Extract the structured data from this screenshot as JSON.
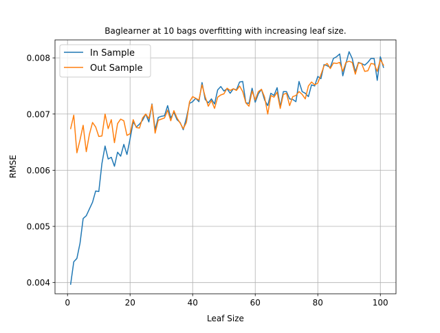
{
  "chart_data": {
    "type": "line",
    "title": "Baglearner at 10 bags overfitting with increasing leaf size.",
    "xlabel": "Leaf Size",
    "ylabel": "RMSE",
    "xlim": [
      -4,
      105
    ],
    "ylim": [
      0.0038,
      0.00832
    ],
    "grid": true,
    "legend_position": "upper-left",
    "x_ticks": [
      {
        "value": 0,
        "label": "0"
      },
      {
        "value": 20,
        "label": "20"
      },
      {
        "value": 40,
        "label": "40"
      },
      {
        "value": 60,
        "label": "60"
      },
      {
        "value": 80,
        "label": "80"
      },
      {
        "value": 100,
        "label": "100"
      }
    ],
    "y_ticks": [
      {
        "value": 0.004,
        "label": "0.004"
      },
      {
        "value": 0.005,
        "label": "0.005"
      },
      {
        "value": 0.006,
        "label": "0.006"
      },
      {
        "value": 0.007,
        "label": "0.007"
      },
      {
        "value": 0.008,
        "label": "0.008"
      }
    ],
    "x_start": 1,
    "series": [
      {
        "name": "In Sample",
        "color": "#1f77b4",
        "values": [
          0.00397,
          0.00437,
          0.00443,
          0.0047,
          0.00514,
          0.00519,
          0.00531,
          0.00543,
          0.00563,
          0.00562,
          0.00612,
          0.00643,
          0.0062,
          0.00623,
          0.00607,
          0.00632,
          0.00625,
          0.00646,
          0.00628,
          0.00656,
          0.00686,
          0.00677,
          0.00682,
          0.00689,
          0.007,
          0.00686,
          0.00718,
          0.00672,
          0.00694,
          0.00696,
          0.00697,
          0.00715,
          0.00693,
          0.00703,
          0.0069,
          0.00685,
          0.00672,
          0.00693,
          0.00719,
          0.00722,
          0.00728,
          0.00722,
          0.00756,
          0.00726,
          0.0072,
          0.00727,
          0.00718,
          0.00743,
          0.00749,
          0.00741,
          0.00745,
          0.00737,
          0.00745,
          0.00743,
          0.00757,
          0.00758,
          0.0072,
          0.00719,
          0.00746,
          0.00721,
          0.00736,
          0.00744,
          0.00725,
          0.00715,
          0.00737,
          0.00733,
          0.00747,
          0.00713,
          0.0074,
          0.0074,
          0.00727,
          0.00726,
          0.00722,
          0.00758,
          0.0074,
          0.00737,
          0.00731,
          0.00752,
          0.0075,
          0.00767,
          0.00763,
          0.00788,
          0.00786,
          0.00783,
          0.00799,
          0.00802,
          0.00807,
          0.00768,
          0.0079,
          0.00811,
          0.00799,
          0.00775,
          0.00792,
          0.0079,
          0.00787,
          0.00792,
          0.00799,
          0.00799,
          0.0076,
          0.00802,
          0.00783
        ]
      },
      {
        "name": "Out Sample",
        "color": "#ff7f0e",
        "values": [
          0.00674,
          0.00698,
          0.00631,
          0.00654,
          0.0068,
          0.00633,
          0.00664,
          0.00685,
          0.00677,
          0.0066,
          0.00661,
          0.007,
          0.00674,
          0.0069,
          0.00649,
          0.00683,
          0.00691,
          0.00688,
          0.00662,
          0.00665,
          0.0069,
          0.00676,
          0.00675,
          0.00693,
          0.007,
          0.00692,
          0.00717,
          0.00666,
          0.00689,
          0.00691,
          0.00693,
          0.00707,
          0.00688,
          0.00706,
          0.00693,
          0.00684,
          0.00674,
          0.00685,
          0.00722,
          0.00731,
          0.00728,
          0.00725,
          0.00752,
          0.00731,
          0.00714,
          0.00724,
          0.0071,
          0.0073,
          0.00734,
          0.00736,
          0.00746,
          0.00742,
          0.00745,
          0.00742,
          0.0075,
          0.0074,
          0.0072,
          0.00714,
          0.00741,
          0.00725,
          0.0074,
          0.00744,
          0.0073,
          0.007,
          0.00733,
          0.0073,
          0.00739,
          0.0071,
          0.00735,
          0.00737,
          0.00715,
          0.00731,
          0.00733,
          0.0074,
          0.00735,
          0.00727,
          0.0075,
          0.00757,
          0.00752,
          0.00755,
          0.0077,
          0.00786,
          0.0079,
          0.00781,
          0.00791,
          0.0079,
          0.00792,
          0.00776,
          0.00792,
          0.00794,
          0.00792,
          0.00771,
          0.00791,
          0.0079,
          0.00776,
          0.00777,
          0.0079,
          0.00789,
          0.00776,
          0.00797,
          0.00787
        ]
      }
    ]
  }
}
